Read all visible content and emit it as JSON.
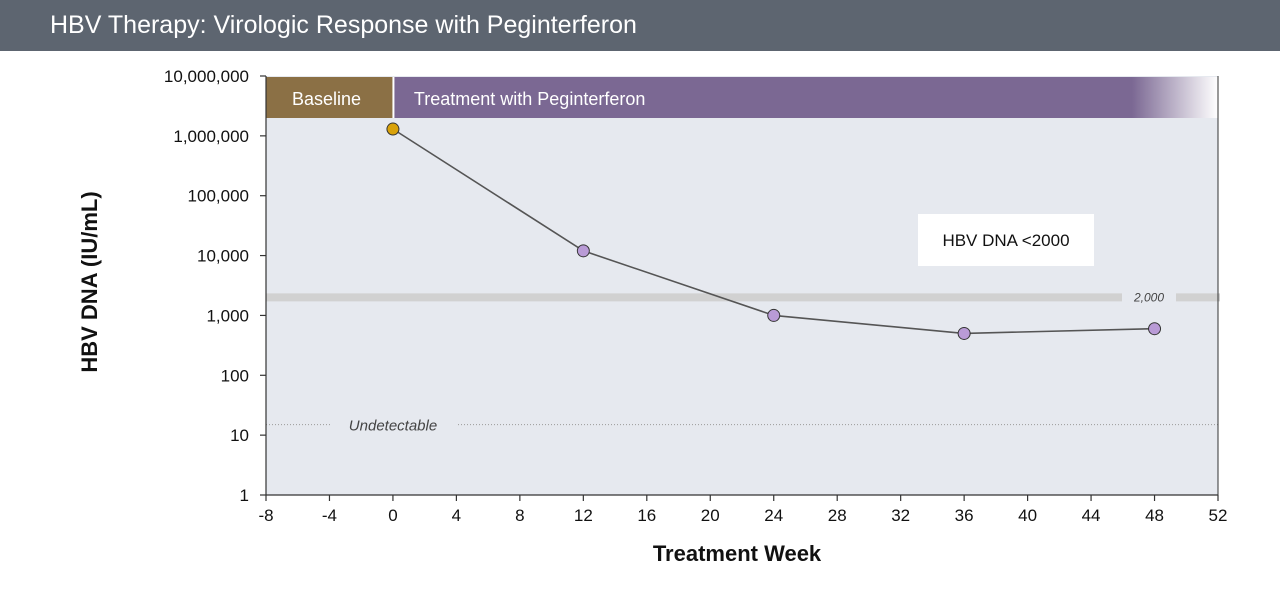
{
  "header": {
    "title": "HBV Therapy: Virologic Response with Peginterferon"
  },
  "chart_data": {
    "type": "line",
    "x_axis": {
      "label": "Treatment Week",
      "range": [
        -8,
        52
      ],
      "ticks": [
        "-8",
        "-4",
        "0",
        "4",
        "8",
        "12",
        "16",
        "20",
        "24",
        "28",
        "32",
        "36",
        "40",
        "44",
        "48",
        "52"
      ]
    },
    "y_axis": {
      "label": "HBV DNA (IU/mL)",
      "scale": "log",
      "range": [
        1,
        10000000
      ],
      "ticks": [
        "1",
        "10",
        "100",
        "1,000",
        "10,000",
        "100,000",
        "1,000,000",
        "10,000,000"
      ]
    },
    "series": [
      {
        "x": [
          0,
          12,
          24,
          36,
          48
        ],
        "y": [
          1300000,
          12000,
          1000,
          500,
          600
        ],
        "line_color": "#555555",
        "point_colors": [
          "#d9a20a",
          "#b99bd6",
          "#b99bd6",
          "#b99bd6",
          "#b99bd6"
        ]
      }
    ],
    "phases": [
      {
        "label": "Baseline",
        "x_range": [
          -8,
          0
        ],
        "color": "#8b7045"
      },
      {
        "label": "Treatment with Peginterferon",
        "x_range": [
          0,
          52
        ],
        "color": "#7b6893"
      }
    ],
    "reference_lines": [
      {
        "label": "2,000",
        "y": 2000,
        "style": "thick-gray"
      },
      {
        "label": "Undetectable",
        "y": 15,
        "style": "dotted"
      }
    ],
    "annotations": [
      {
        "text": "HBV DNA <2000"
      }
    ],
    "grid": false,
    "plot_background": "#e6e9ef"
  }
}
